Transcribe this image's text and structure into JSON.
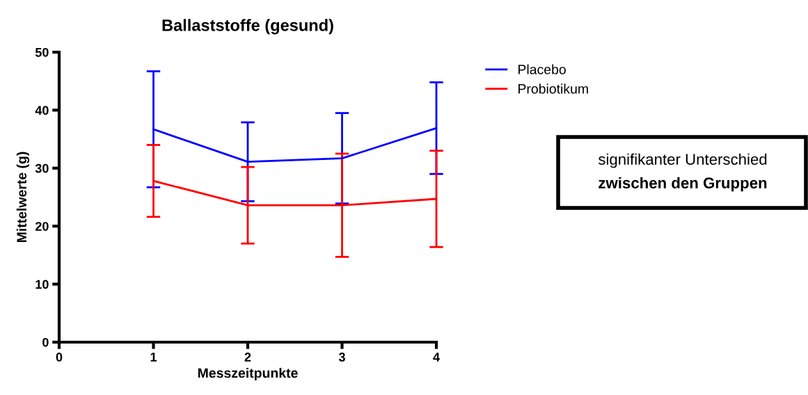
{
  "chart_data": {
    "type": "line",
    "title": "Ballaststoffe (gesund)",
    "xlabel": "Messzeitpunkte",
    "ylabel": "Mittelwerte (g)",
    "x": [
      1,
      2,
      3,
      4
    ],
    "series": [
      {
        "name": "Placebo",
        "color": "#0000ff",
        "values": [
          36.7,
          31.1,
          31.7,
          36.9
        ],
        "errors": [
          10,
          6.8,
          7.8,
          7.9
        ]
      },
      {
        "name": "Probiotikum",
        "color": "#ff0000",
        "values": [
          27.8,
          23.6,
          23.6,
          24.7
        ],
        "errors": [
          6.2,
          6.6,
          8.9,
          8.3
        ]
      }
    ],
    "xlim": [
      0,
      4
    ],
    "xticks": [
      0,
      1,
      2,
      3,
      4
    ],
    "ylim": [
      0,
      50
    ],
    "yticks": [
      0,
      10,
      20,
      30,
      40,
      50
    ],
    "grid": false,
    "legend": "top right",
    "marker": "none",
    "line_style": "solid",
    "annotations": [
      "signifikanter Unterschied\nzwischen den Gruppen"
    ]
  }
}
